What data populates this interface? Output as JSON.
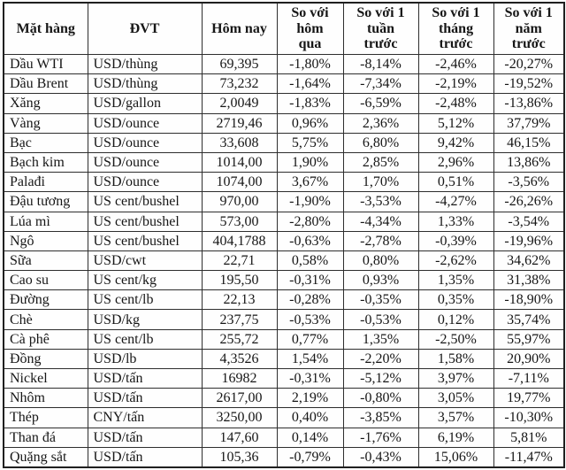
{
  "table": {
    "name": "commodity-price-table",
    "columns": [
      {
        "key": "commodity",
        "label": "Mặt hàng"
      },
      {
        "key": "unit",
        "label": "ĐVT"
      },
      {
        "key": "today",
        "label": "Hôm nay"
      },
      {
        "key": "vs-yesterday",
        "label": "So với\nhôm\nqua"
      },
      {
        "key": "vs-week",
        "label": "So với 1\ntuần\ntrước"
      },
      {
        "key": "vs-month",
        "label": "So với 1\ntháng\ntrước"
      },
      {
        "key": "vs-year",
        "label": "So với 1\nnăm\ntrước"
      }
    ],
    "rows": [
      {
        "cells": [
          "Dầu WTI",
          "USD/thùng",
          "69,395",
          "-1,80%",
          "-8,14%",
          "-2,46%",
          "-20,27%"
        ]
      },
      {
        "cells": [
          "Dầu Brent",
          "USD/thùng",
          "73,232",
          "-1,64%",
          "-7,34%",
          "-2,19%",
          "-19,52%"
        ]
      },
      {
        "cells": [
          "Xăng",
          "USD/gallon",
          "2,0049",
          "-1,83%",
          "-6,59%",
          "-2,48%",
          "-13,86%"
        ]
      },
      {
        "cells": [
          "Vàng",
          "USD/ounce",
          "2719,46",
          "0,96%",
          "2,36%",
          "5,12%",
          "37,79%"
        ]
      },
      {
        "cells": [
          "Bạc",
          "USD/ounce",
          "33,608",
          "5,75%",
          "6,80%",
          "9,42%",
          "46,15%"
        ]
      },
      {
        "cells": [
          "Bạch kim",
          "USD/ounce",
          "1014,00",
          "1,90%",
          "2,85%",
          "2,96%",
          "13,86%"
        ]
      },
      {
        "cells": [
          "Palađi",
          "USD/ounce",
          "1074,00",
          "3,67%",
          "1,70%",
          "0,51%",
          "-3,56%"
        ]
      },
      {
        "cells": [
          "Đậu tương",
          "US cent/bushel",
          "970,00",
          "-1,90%",
          "-3,53%",
          "-4,27%",
          "-26,26%"
        ]
      },
      {
        "cells": [
          "Lúa mì",
          "US cent/bushel",
          "573,00",
          "-2,80%",
          "-4,34%",
          "1,33%",
          "-3,54%"
        ]
      },
      {
        "cells": [
          "Ngô",
          "US cent/bushel",
          "404,1788",
          "-0,63%",
          "-2,78%",
          "-0,39%",
          "-19,96%"
        ]
      },
      {
        "cells": [
          "Sữa",
          "USD/cwt",
          "22,71",
          "0,58%",
          "0,80%",
          "-2,62%",
          "34,62%"
        ]
      },
      {
        "cells": [
          "Cao su",
          "US cent/kg",
          "195,50",
          "-0,31%",
          "0,93%",
          "1,35%",
          "31,38%"
        ]
      },
      {
        "cells": [
          "Đường",
          "US cent/lb",
          "22,13",
          "-0,28%",
          "-0,35%",
          "0,35%",
          "-18,90%"
        ]
      },
      {
        "cells": [
          "Chè",
          "USD/kg",
          "237,75",
          "-0,53%",
          "-0,53%",
          "0,12%",
          "35,74%"
        ]
      },
      {
        "cells": [
          "Cà phê",
          "US cent/lb",
          "255,72",
          "0,77%",
          "1,35%",
          "-2,50%",
          "55,97%"
        ]
      },
      {
        "cells": [
          "Đồng",
          "USD/lb",
          "4,3526",
          "1,54%",
          "-2,20%",
          "1,58%",
          "20,90%"
        ]
      },
      {
        "cells": [
          "Nickel",
          "USD/tấn",
          "16982",
          "-0,31%",
          "-5,12%",
          "3,97%",
          "-7,11%"
        ]
      },
      {
        "cells": [
          "Nhôm",
          "USD/tấn",
          "2617,00",
          "2,19%",
          "-0,80%",
          "3,05%",
          "19,77%"
        ]
      },
      {
        "cells": [
          "Thép",
          "CNY/tấn",
          "3250,00",
          "0,40%",
          "-3,85%",
          "3,57%",
          "-10,30%"
        ]
      },
      {
        "cells": [
          "Than đá",
          "USD/tấn",
          "147,60",
          "0,14%",
          "-1,76%",
          "6,19%",
          "5,81%"
        ]
      },
      {
        "cells": [
          "Quặng sắt",
          "USD/tấn",
          "105,36",
          "-0,79%",
          "-0,43%",
          "15,06%",
          "-11,47%"
        ]
      }
    ],
    "colors": {
      "border": "#2e2e2e",
      "outer_border": "#1f1f1f",
      "text": "#161616",
      "background": "#fefefe"
    }
  }
}
